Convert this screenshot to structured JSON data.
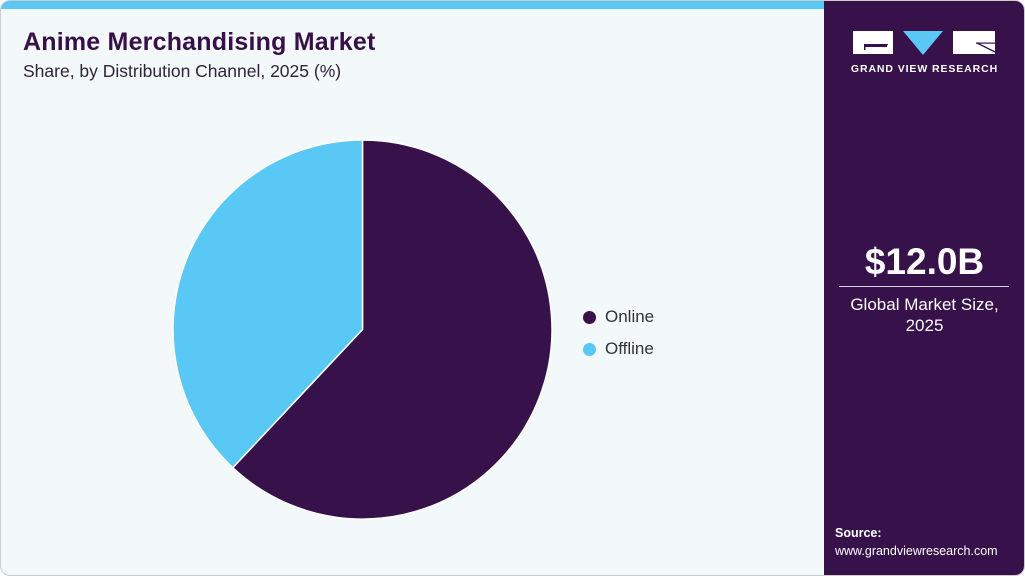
{
  "header": {
    "title": "Anime Merchandising Market",
    "subtitle": "Share, by Distribution Channel, 2025 (%)"
  },
  "colors": {
    "accent_bar": "#5ac8f5",
    "brand_dark": "#37114a",
    "online": "#37114a",
    "offline": "#5ac8f5",
    "background": "#f3f8fb"
  },
  "chart_data": {
    "type": "pie",
    "title": "Anime Merchandising Market",
    "subtitle": "Share, by Distribution Channel, 2025 (%)",
    "categories": [
      "Online",
      "Offline"
    ],
    "values": [
      62,
      38
    ],
    "colors": [
      "#37114a",
      "#5ac8f5"
    ],
    "start_angle_deg": 0,
    "direction": "clockwise",
    "legend_position": "right"
  },
  "legend": {
    "items": [
      {
        "label": "Online",
        "color": "#37114a"
      },
      {
        "label": "Offline",
        "color": "#5ac8f5"
      }
    ]
  },
  "side_panel": {
    "logo_text": "GRAND VIEW RESEARCH",
    "logo_icon": "gvr-logo-icon",
    "market_value": "$12.0B",
    "market_label_line1": "Global Market Size,",
    "market_label_line2": "2025",
    "source_label": "Source:",
    "source_url": "www.grandviewresearch.com"
  }
}
